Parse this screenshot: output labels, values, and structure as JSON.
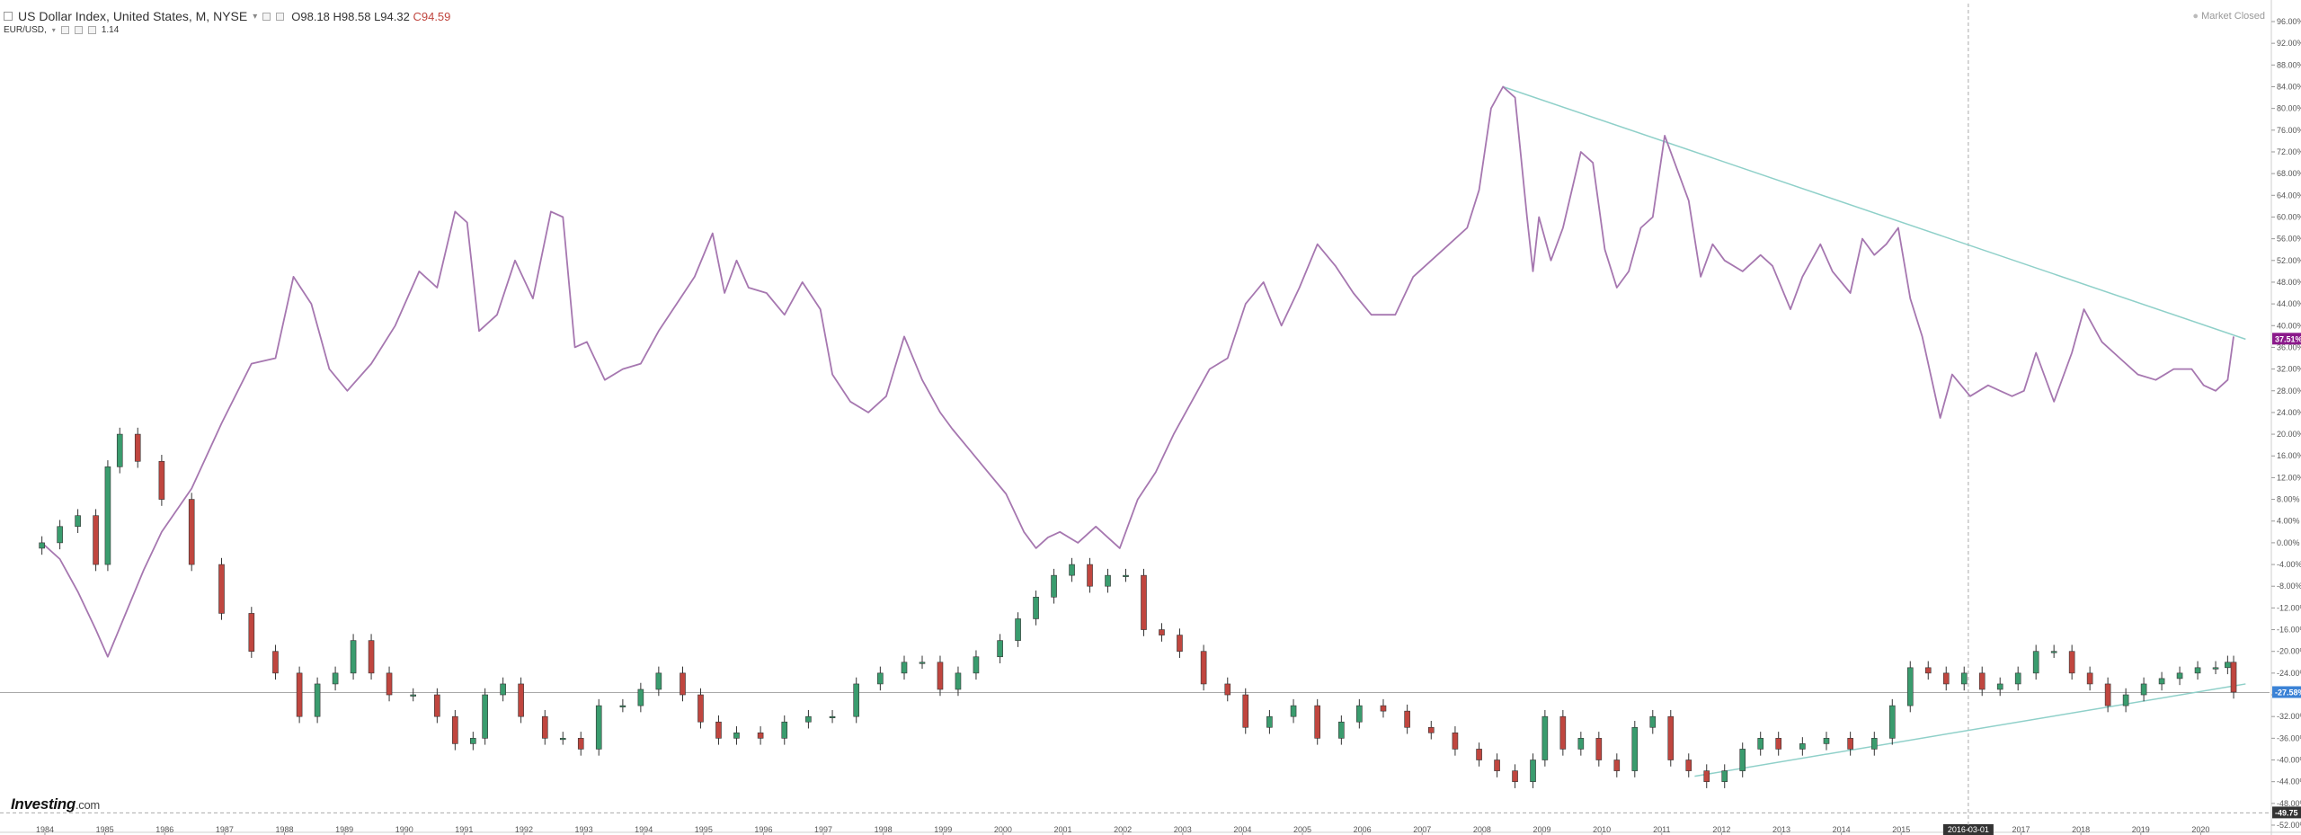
{
  "header": {
    "title": "US Dollar Index, United States, M, NYSE",
    "open": "O98.18",
    "high": "H98.58",
    "low": "L94.32",
    "close": "C94.59",
    "compare_label": "EUR/USD,",
    "compare_value": "1.14"
  },
  "status": {
    "market": "Market Closed"
  },
  "logo": {
    "brand": "Investing",
    "suffix": ".com"
  },
  "colors": {
    "purple": "#a677b0",
    "trend": "#8fd0c9",
    "up": "#3a9c6e",
    "down": "#c0463f",
    "grid": "#aaaaaa",
    "badge_purple": "#8b1a8b",
    "badge_blue": "#3b82d6",
    "badge_dark": "#333333"
  },
  "chart_data": {
    "type": "line",
    "x_labels": [
      "1984",
      "1985",
      "1986",
      "1987",
      "1988",
      "1989",
      "1990",
      "1991",
      "1992",
      "1993",
      "1994",
      "1995",
      "1996",
      "1997",
      "1998",
      "1999",
      "2000",
      "2001",
      "2002",
      "2003",
      "2004",
      "2005",
      "2006",
      "2007",
      "2008",
      "2009",
      "2010",
      "2011",
      "2012",
      "2013",
      "2014",
      "2015",
      "2016-03-01",
      "2017",
      "2018",
      "2019",
      "2020"
    ],
    "y_ticks": [
      "96.00%",
      "92.00%",
      "88.00%",
      "84.00%",
      "80.00%",
      "76.00%",
      "72.00%",
      "68.00%",
      "64.00%",
      "60.00%",
      "56.00%",
      "52.00%",
      "48.00%",
      "44.00%",
      "40.00%",
      "36.00%",
      "32.00%",
      "28.00%",
      "24.00%",
      "20.00%",
      "16.00%",
      "12.00%",
      "8.00%",
      "4.00%",
      "0.00%",
      "-4.00%",
      "-8.00%",
      "-12.00%",
      "-16.00%",
      "-20.00%",
      "-24.00%",
      "-28.00%",
      "-32.00%",
      "-36.00%",
      "-40.00%",
      "-44.00%",
      "-48.00%",
      "-52.00%"
    ],
    "ylim": [
      -52,
      96
    ],
    "badges": {
      "purple": "37.51%",
      "blue": "-27.58%",
      "dark": "-49.75"
    },
    "series": [
      {
        "name": "EUR/USD",
        "style": "line",
        "x": [
          1984.0,
          1984.3,
          1984.6,
          1984.9,
          1985.1,
          1985.4,
          1985.7,
          1986.0,
          1986.5,
          1987.0,
          1987.5,
          1987.9,
          1988.2,
          1988.5,
          1988.8,
          1989.1,
          1989.5,
          1989.9,
          1990.3,
          1990.6,
          1990.9,
          1991.1,
          1991.3,
          1991.6,
          1991.9,
          1992.2,
          1992.5,
          1992.7,
          1992.9,
          1993.1,
          1993.4,
          1993.7,
          1994.0,
          1994.3,
          1994.6,
          1994.9,
          1995.2,
          1995.4,
          1995.6,
          1995.8,
          1996.1,
          1996.4,
          1996.7,
          1997.0,
          1997.2,
          1997.5,
          1997.8,
          1998.1,
          1998.4,
          1998.7,
          1999.0,
          1999.2,
          1999.5,
          1999.8,
          2000.1,
          2000.4,
          2000.6,
          2000.8,
          2001.0,
          2001.3,
          2001.6,
          2001.8,
          2002.0,
          2002.3,
          2002.6,
          2002.9,
          2003.2,
          2003.5,
          2003.8,
          2004.1,
          2004.4,
          2004.7,
          2005.0,
          2005.3,
          2005.6,
          2005.9,
          2006.2,
          2006.6,
          2006.9,
          2007.2,
          2007.5,
          2007.8,
          2008.0,
          2008.2,
          2008.4,
          2008.6,
          2008.8,
          2008.9,
          2009.0,
          2009.2,
          2009.4,
          2009.7,
          2009.9,
          2010.1,
          2010.3,
          2010.5,
          2010.7,
          2010.9,
          2011.1,
          2011.3,
          2011.5,
          2011.7,
          2011.9,
          2012.1,
          2012.4,
          2012.7,
          2012.9,
          2013.2,
          2013.4,
          2013.7,
          2013.9,
          2014.2,
          2014.4,
          2014.6,
          2014.8,
          2015.0,
          2015.2,
          2015.4,
          2015.7,
          2015.9,
          2016.2,
          2016.5,
          2016.7,
          2016.9,
          2017.1,
          2017.3,
          2017.6,
          2017.9,
          2018.1,
          2018.4,
          2018.7,
          2019.0,
          2019.3,
          2019.6,
          2019.9,
          2020.1,
          2020.3,
          2020.5,
          2020.6
        ],
        "y": [
          0,
          -3,
          -9,
          -16,
          -21,
          -13,
          -5,
          2,
          10,
          22,
          33,
          34,
          49,
          44,
          32,
          28,
          33,
          40,
          50,
          47,
          61,
          59,
          39,
          42,
          52,
          45,
          61,
          60,
          36,
          37,
          30,
          32,
          33,
          39,
          44,
          49,
          57,
          46,
          52,
          47,
          46,
          42,
          48,
          43,
          31,
          26,
          24,
          27,
          38,
          30,
          24,
          21,
          17,
          13,
          9,
          2,
          -1,
          1,
          2,
          0,
          3,
          1,
          -1,
          8,
          13,
          20,
          26,
          32,
          34,
          44,
          48,
          40,
          47,
          55,
          51,
          46,
          42,
          42,
          49,
          52,
          55,
          58,
          65,
          80,
          84,
          82,
          60,
          50,
          60,
          52,
          58,
          72,
          70,
          54,
          47,
          50,
          58,
          60,
          75,
          69,
          63,
          49,
          55,
          52,
          50,
          53,
          51,
          43,
          49,
          55,
          50,
          46,
          56,
          53,
          55,
          58,
          45,
          38,
          23,
          31,
          27,
          29,
          28,
          27,
          28,
          35,
          26,
          35,
          43,
          37,
          34,
          31,
          30,
          32,
          32,
          29,
          28,
          30,
          38
        ],
        "color": "#a677b0"
      },
      {
        "name": "US Dollar Index",
        "style": "candlestick",
        "x": [
          1984.0,
          1984.3,
          1984.6,
          1984.9,
          1985.1,
          1985.3,
          1985.6,
          1986.0,
          1986.5,
          1987.0,
          1987.5,
          1987.9,
          1988.3,
          1988.6,
          1988.9,
          1989.2,
          1989.5,
          1989.8,
          1990.2,
          1990.6,
          1990.9,
          1991.2,
          1991.4,
          1991.7,
          1992.0,
          1992.4,
          1992.7,
          1993.0,
          1993.3,
          1993.7,
          1994.0,
          1994.3,
          1994.7,
          1995.0,
          1995.3,
          1995.6,
          1996.0,
          1996.4,
          1996.8,
          1997.2,
          1997.6,
          1998.0,
          1998.4,
          1998.7,
          1999.0,
          1999.3,
          1999.6,
          2000.0,
          2000.3,
          2000.6,
          2000.9,
          2001.2,
          2001.5,
          2001.8,
          2002.1,
          2002.4,
          2002.7,
          2003.0,
          2003.4,
          2003.8,
          2004.1,
          2004.5,
          2004.9,
          2005.3,
          2005.7,
          2006.0,
          2006.4,
          2006.8,
          2007.2,
          2007.6,
          2008.0,
          2008.3,
          2008.6,
          2008.9,
          2009.1,
          2009.4,
          2009.7,
          2010.0,
          2010.3,
          2010.6,
          2010.9,
          2011.2,
          2011.5,
          2011.8,
          2012.1,
          2012.4,
          2012.7,
          2013.0,
          2013.4,
          2013.8,
          2014.2,
          2014.6,
          2014.9,
          2015.2,
          2015.5,
          2015.8,
          2016.1,
          2016.4,
          2016.7,
          2017.0,
          2017.3,
          2017.6,
          2017.9,
          2018.2,
          2018.5,
          2018.8,
          2019.1,
          2019.4,
          2019.7,
          2020.0,
          2020.3,
          2020.5,
          2020.6
        ],
        "y": [
          0,
          3,
          5,
          -4,
          14,
          20,
          15,
          8,
          -4,
          -13,
          -20,
          -24,
          -32,
          -26,
          -24,
          -18,
          -24,
          -28,
          -28,
          -32,
          -37,
          -36,
          -28,
          -26,
          -32,
          -36,
          -36,
          -38,
          -30,
          -30,
          -27,
          -24,
          -28,
          -33,
          -36,
          -35,
          -36,
          -33,
          -32,
          -32,
          -26,
          -24,
          -22,
          -22,
          -27,
          -24,
          -21,
          -18,
          -14,
          -10,
          -6,
          -4,
          -8,
          -6,
          -6,
          -16,
          -17,
          -20,
          -26,
          -28,
          -34,
          -32,
          -30,
          -36,
          -33,
          -30,
          -31,
          -34,
          -35,
          -38,
          -40,
          -42,
          -44,
          -40,
          -32,
          -38,
          -36,
          -40,
          -42,
          -34,
          -32,
          -40,
          -42,
          -44,
          -42,
          -38,
          -36,
          -38,
          -37,
          -36,
          -38,
          -36,
          -30,
          -23,
          -24,
          -26,
          -24,
          -27,
          -26,
          -24,
          -20,
          -20,
          -24,
          -26,
          -30,
          -28,
          -26,
          -25,
          -24,
          -23,
          -23,
          -22,
          -27.5
        ],
        "color_up": "#3a9c6e",
        "color_down": "#c0463f"
      }
    ],
    "trendlines": [
      {
        "x": [
          2008.4,
          2020.8
        ],
        "y": [
          84,
          37.5
        ]
      },
      {
        "x": [
          2011.6,
          2020.8
        ],
        "y": [
          -43,
          -26
        ]
      }
    ],
    "reference_lines": [
      {
        "orientation": "horizontal",
        "y": -27.58,
        "style": "solid"
      },
      {
        "orientation": "horizontal",
        "y": -49.75,
        "style": "dashed"
      },
      {
        "orientation": "vertical",
        "x": 2016.17,
        "style": "dashed"
      }
    ]
  }
}
